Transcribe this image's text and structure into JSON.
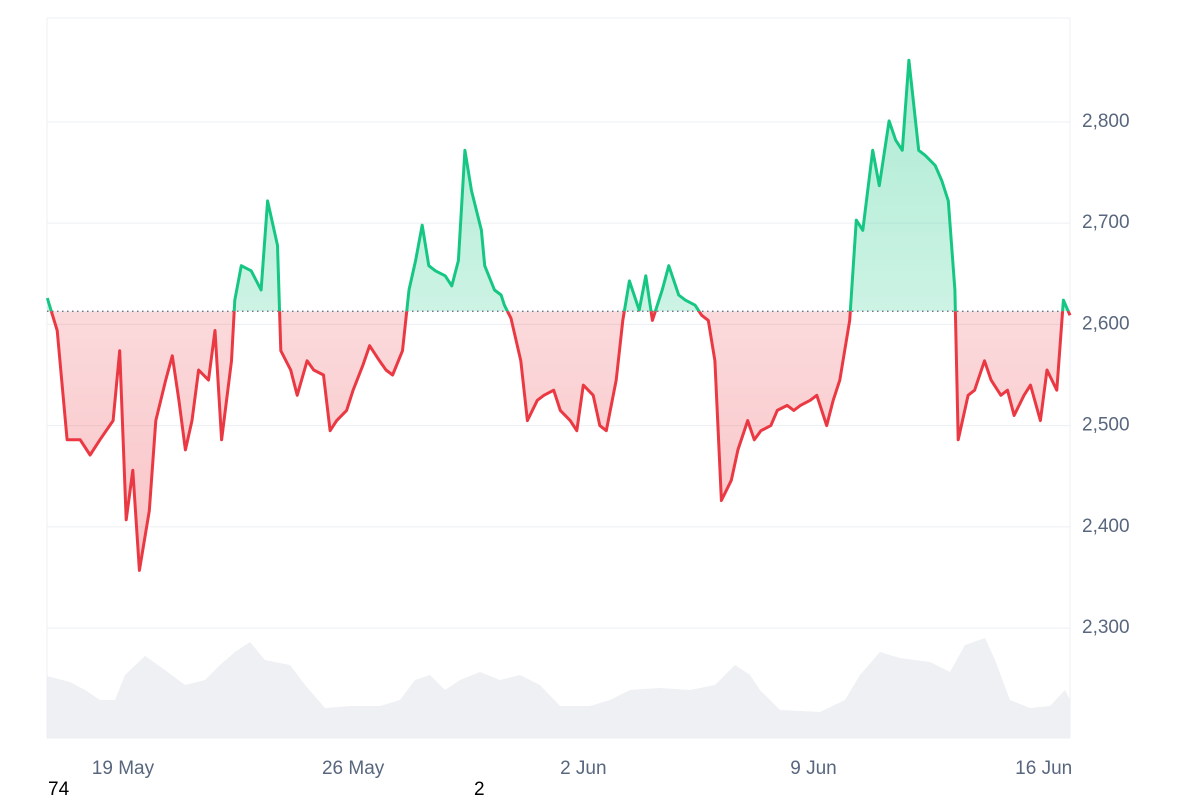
{
  "chart_data": {
    "type": "baseline-line",
    "x": [
      16.7,
      17.0,
      17.3,
      17.7,
      18.0,
      18.3,
      18.7,
      18.9,
      19.1,
      19.3,
      19.5,
      19.8,
      20.0,
      20.3,
      20.5,
      20.7,
      20.9,
      21.1,
      21.3,
      21.6,
      21.8,
      22.0,
      22.3,
      22.4,
      22.6,
      22.9,
      23.2,
      23.4,
      23.7,
      23.8,
      24.1,
      24.3,
      24.6,
      24.8,
      25.1,
      25.3,
      25.5,
      25.8,
      26.0,
      26.3,
      26.5,
      26.8,
      27.0,
      27.2,
      27.5,
      27.7,
      27.9,
      28.1,
      28.3,
      28.5,
      28.8,
      29.0,
      29.2,
      29.4,
      29.6,
      29.9,
      30.0,
      30.3,
      30.5,
      30.6,
      30.8,
      31.1,
      31.3,
      31.6,
      31.8,
      32.1,
      32.3,
      32.6,
      32.8,
      33.0,
      33.3,
      33.5,
      33.7,
      34.0,
      34.2,
      34.4,
      34.7,
      34.9,
      35.1,
      35.4,
      35.6,
      35.9,
      36.1,
      36.4,
      36.6,
      36.8,
      37.0,
      37.2,
      37.5,
      37.7,
      38.0,
      38.2,
      38.4,
      38.7,
      38.9,
      39.2,
      39.4,
      39.6,
      39.9,
      40.1,
      40.4,
      40.6,
      40.8,
      41.1,
      41.3,
      41.5,
      41.8,
      42.0,
      42.3,
      42.5,
      42.7,
      42.9,
      43.2,
      43.4,
      43.7,
      43.9,
      44.1,
      44.3,
      44.4,
      44.7,
      44.9,
      45.2,
      45.4,
      45.7,
      45.9,
      46.1,
      46.4,
      46.6,
      46.9,
      47.1,
      47.4,
      47.6,
      47.8
    ],
    "values": [
      2626,
      2594,
      2486,
      2486,
      2471,
      2486,
      2505,
      2574,
      2407,
      2456,
      2357,
      2416,
      2505,
      2545,
      2569,
      2525,
      2476,
      2505,
      2555,
      2545,
      2594,
      2486,
      2564,
      2624,
      2658,
      2653,
      2634,
      2722,
      2678,
      2574,
      2555,
      2530,
      2564,
      2555,
      2550,
      2495,
      2505,
      2515,
      2535,
      2560,
      2579,
      2564,
      2555,
      2550,
      2574,
      2634,
      2663,
      2698,
      2658,
      2653,
      2648,
      2638,
      2663,
      2772,
      2732,
      2693,
      2658,
      2634,
      2629,
      2619,
      2606,
      2564,
      2505,
      2525,
      2530,
      2535,
      2515,
      2505,
      2495,
      2540,
      2530,
      2500,
      2495,
      2545,
      2604,
      2643,
      2614,
      2648,
      2604,
      2634,
      2658,
      2629,
      2624,
      2619,
      2609,
      2604,
      2564,
      2426,
      2446,
      2476,
      2505,
      2486,
      2495,
      2500,
      2515,
      2520,
      2515,
      2520,
      2525,
      2530,
      2500,
      2525,
      2545,
      2604,
      2703,
      2693,
      2772,
      2737,
      2801,
      2782,
      2772,
      2861,
      2772,
      2767,
      2757,
      2742,
      2722,
      2634,
      2486,
      2530,
      2535,
      2564,
      2545,
      2530,
      2535,
      2510,
      2530,
      2540,
      2505,
      2555,
      2535,
      2624,
      2609
    ],
    "baseline": 2613,
    "color_up": "#16c784",
    "color_down": "#ea3943",
    "xlim": [
      16.69,
      47.8
    ],
    "xticks": [
      {
        "value": 19,
        "label": "19 May"
      },
      {
        "value": 26,
        "label": "26 May"
      },
      {
        "value": 33,
        "label": "2 Jun"
      },
      {
        "value": 40,
        "label": "9 Jun"
      },
      {
        "value": 47,
        "label": "16 Jun"
      }
    ],
    "ylim": [
      2191.4,
      2902.7
    ],
    "yticks": [
      {
        "value": 2300,
        "label": "2,300"
      },
      {
        "value": 2400,
        "label": "2,400"
      },
      {
        "value": 2500,
        "label": "2,500"
      },
      {
        "value": 2600,
        "label": "2,600"
      },
      {
        "value": 2700,
        "label": "2,700"
      },
      {
        "value": 2800,
        "label": "2,800"
      }
    ],
    "grid": true
  },
  "footer_labels": [
    "74",
    "2"
  ]
}
